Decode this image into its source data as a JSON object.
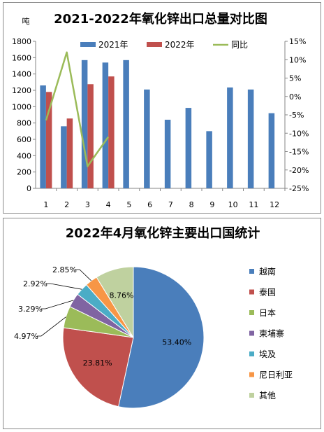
{
  "chart_data": [
    {
      "type": "bar",
      "title": "2021-2022年氧化锌出口总量对比图",
      "ylabel": "吨",
      "xlabel": "",
      "categories": [
        "1",
        "2",
        "3",
        "4",
        "5",
        "6",
        "7",
        "8",
        "9",
        "10",
        "11",
        "12"
      ],
      "ylim": [
        0,
        1800
      ],
      "yticks": [
        "0",
        "200",
        "400",
        "600",
        "800",
        "1000",
        "1200",
        "1400",
        "1600",
        "1800"
      ],
      "y2lim": [
        -25,
        15
      ],
      "y2ticks": [
        "-25%",
        "-20%",
        "-15%",
        "-10%",
        "-5%",
        "0%",
        "5%",
        "10%",
        "15%"
      ],
      "legend_position": "top",
      "grid": false,
      "series": [
        {
          "name": "2021年",
          "kind": "bar",
          "color": "#4a7ebb",
          "values": [
            1260,
            760,
            1570,
            1540,
            1570,
            1210,
            840,
            985,
            700,
            1235,
            1210,
            920
          ]
        },
        {
          "name": "2022年",
          "kind": "bar",
          "color": "#c0504d",
          "values": [
            1180,
            855,
            1275,
            1370,
            null,
            null,
            null,
            null,
            null,
            null,
            null,
            null
          ]
        },
        {
          "name": "同比",
          "kind": "line",
          "axis": "right",
          "color": "#9bbb59",
          "values": [
            -6.5,
            12,
            -19,
            -11,
            null,
            null,
            null,
            null,
            null,
            null,
            null,
            null
          ]
        }
      ]
    },
    {
      "type": "pie",
      "title": "2022年4月氧化锌主要出口国统计",
      "legend_position": "right",
      "slices": [
        {
          "name": "越南",
          "value": 53.4,
          "label": "53.40%",
          "color": "#4a7ebb"
        },
        {
          "name": "泰国",
          "value": 23.81,
          "label": "23.81%",
          "color": "#c0504d"
        },
        {
          "name": "日本",
          "value": 4.97,
          "label": "4.97%",
          "color": "#9bbb59"
        },
        {
          "name": "柬埔寨",
          "value": 3.29,
          "label": "3.29%",
          "color": "#8064a2"
        },
        {
          "name": "埃及",
          "value": 2.92,
          "label": "2.92%",
          "color": "#4bacc6"
        },
        {
          "name": "尼日利亚",
          "value": 2.85,
          "label": "2.85%",
          "color": "#f79646"
        },
        {
          "name": "其他",
          "value": 8.76,
          "label": "8.76%",
          "color": "#bfd19f"
        }
      ]
    }
  ]
}
